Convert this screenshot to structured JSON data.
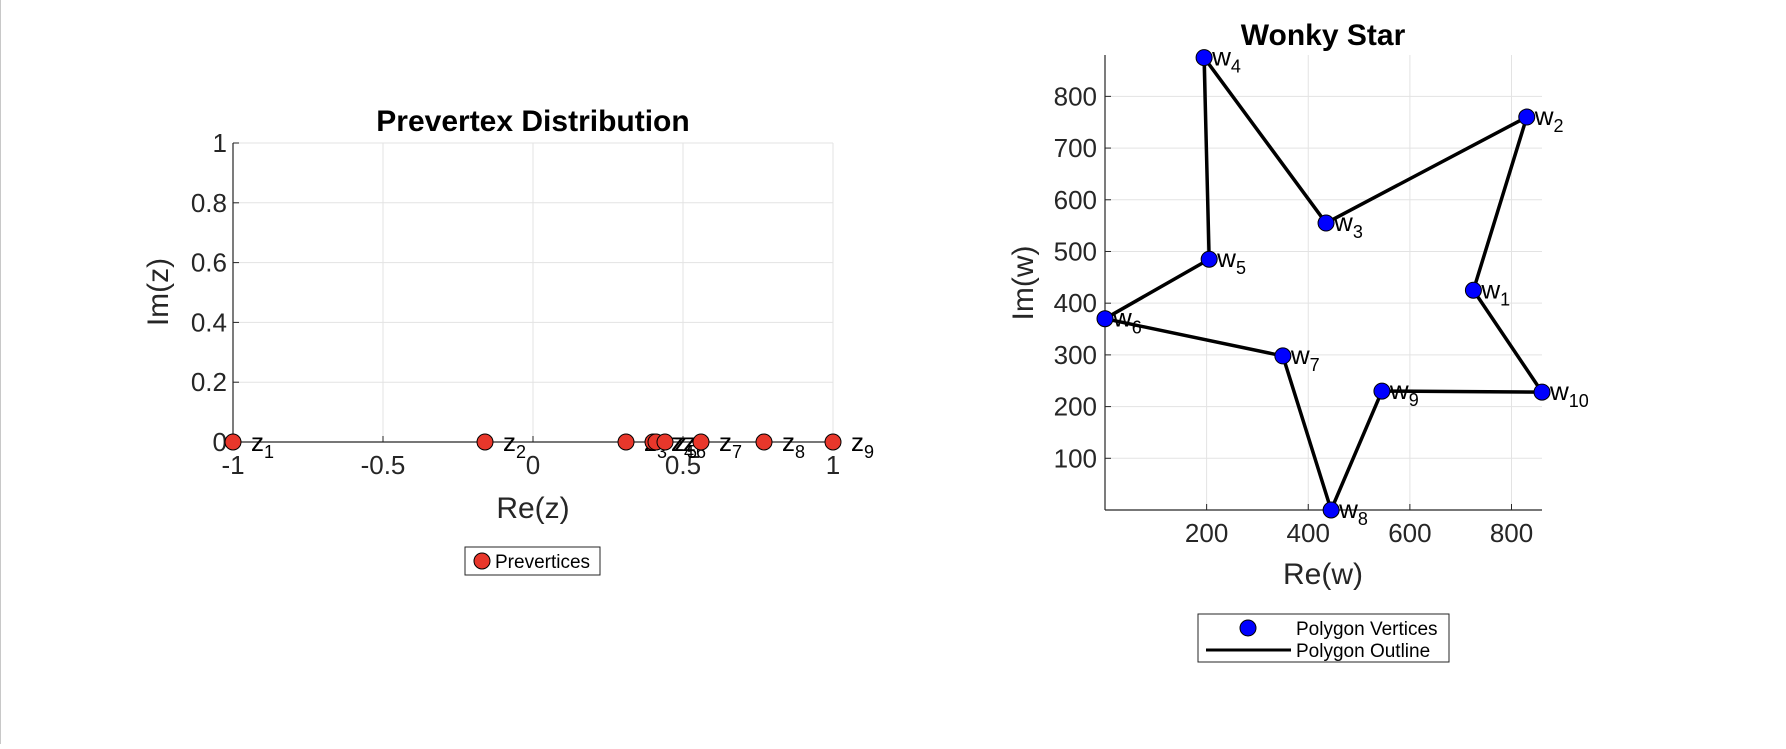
{
  "chart_data": [
    {
      "type": "scatter",
      "title": "Prevertex Distribution",
      "xlabel": "Re(z)",
      "ylabel": "Im(z)",
      "xlim": [
        -1,
        1
      ],
      "ylim": [
        0,
        1
      ],
      "xticks": [
        -1,
        -0.5,
        0,
        0.5,
        1
      ],
      "xtick_labels": [
        "-1",
        "-0.5",
        "0",
        "0.5",
        "1"
      ],
      "yticks": [
        0,
        0.2,
        0.4,
        0.6,
        0.8,
        1
      ],
      "ytick_labels": [
        "0",
        "0.2",
        "0.4",
        "0.6",
        "0.8",
        "1"
      ],
      "grid": true,
      "legend_placement": "below",
      "color": "#e8372b",
      "series": [
        {
          "name": "Prevertices",
          "points": [
            {
              "x": -1.0,
              "y": 0,
              "label": "z",
              "sub": "1"
            },
            {
              "x": -0.16,
              "y": 0,
              "label": "z",
              "sub": "2"
            },
            {
              "x": 0.31,
              "y": 0,
              "label": "z",
              "sub": "3"
            },
            {
              "x": 0.4,
              "y": 0,
              "label": "z",
              "sub": "4"
            },
            {
              "x": 0.41,
              "y": 0,
              "label": "z",
              "sub": "5"
            },
            {
              "x": 0.44,
              "y": 0,
              "label": "z",
              "sub": "6"
            },
            {
              "x": 0.56,
              "y": 0,
              "label": "z",
              "sub": "7"
            },
            {
              "x": 0.77,
              "y": 0,
              "label": "z",
              "sub": "8"
            },
            {
              "x": 1.0,
              "y": 0,
              "label": "z",
              "sub": "9"
            }
          ]
        }
      ],
      "legend": [
        {
          "label": "Prevertices",
          "marker": "circle",
          "color": "#e8372b"
        }
      ]
    },
    {
      "type": "line",
      "title": "Wonky Star",
      "xlabel": "Re(w)",
      "ylabel": "Im(w)",
      "xlim": [
        0,
        860
      ],
      "ylim": [
        0,
        880
      ],
      "xticks": [
        200,
        400,
        600,
        800
      ],
      "xtick_labels": [
        "200",
        "400",
        "600",
        "800"
      ],
      "yticks": [
        100,
        200,
        300,
        400,
        500,
        600,
        700,
        800
      ],
      "ytick_labels": [
        "100",
        "200",
        "300",
        "400",
        "500",
        "600",
        "700",
        "800"
      ],
      "grid": true,
      "legend_placement": "below",
      "color_points": "#0000ff",
      "color_line": "#000000",
      "series": [
        {
          "name": "Polygon Vertices",
          "points": [
            {
              "x": 725,
              "y": 425,
              "label": "w",
              "sub": "1"
            },
            {
              "x": 830,
              "y": 760,
              "label": "w",
              "sub": "2"
            },
            {
              "x": 435,
              "y": 555,
              "label": "w",
              "sub": "3"
            },
            {
              "x": 195,
              "y": 875,
              "label": "w",
              "sub": "4"
            },
            {
              "x": 205,
              "y": 485,
              "label": "w",
              "sub": "5"
            },
            {
              "x": 0,
              "y": 370,
              "label": "w",
              "sub": "6"
            },
            {
              "x": 350,
              "y": 298,
              "label": "w",
              "sub": "7"
            },
            {
              "x": 445,
              "y": 0,
              "label": "w",
              "sub": "8"
            },
            {
              "x": 545,
              "y": 230,
              "label": "w",
              "sub": "9"
            },
            {
              "x": 860,
              "y": 228,
              "label": "w",
              "sub": "10"
            }
          ]
        },
        {
          "name": "Polygon Outline",
          "closed": true
        }
      ],
      "legend": [
        {
          "label": "Polygon Vertices",
          "marker": "circle",
          "color": "#0000ff"
        },
        {
          "label": "Polygon Outline",
          "marker": "line",
          "color": "#000000"
        }
      ]
    }
  ]
}
